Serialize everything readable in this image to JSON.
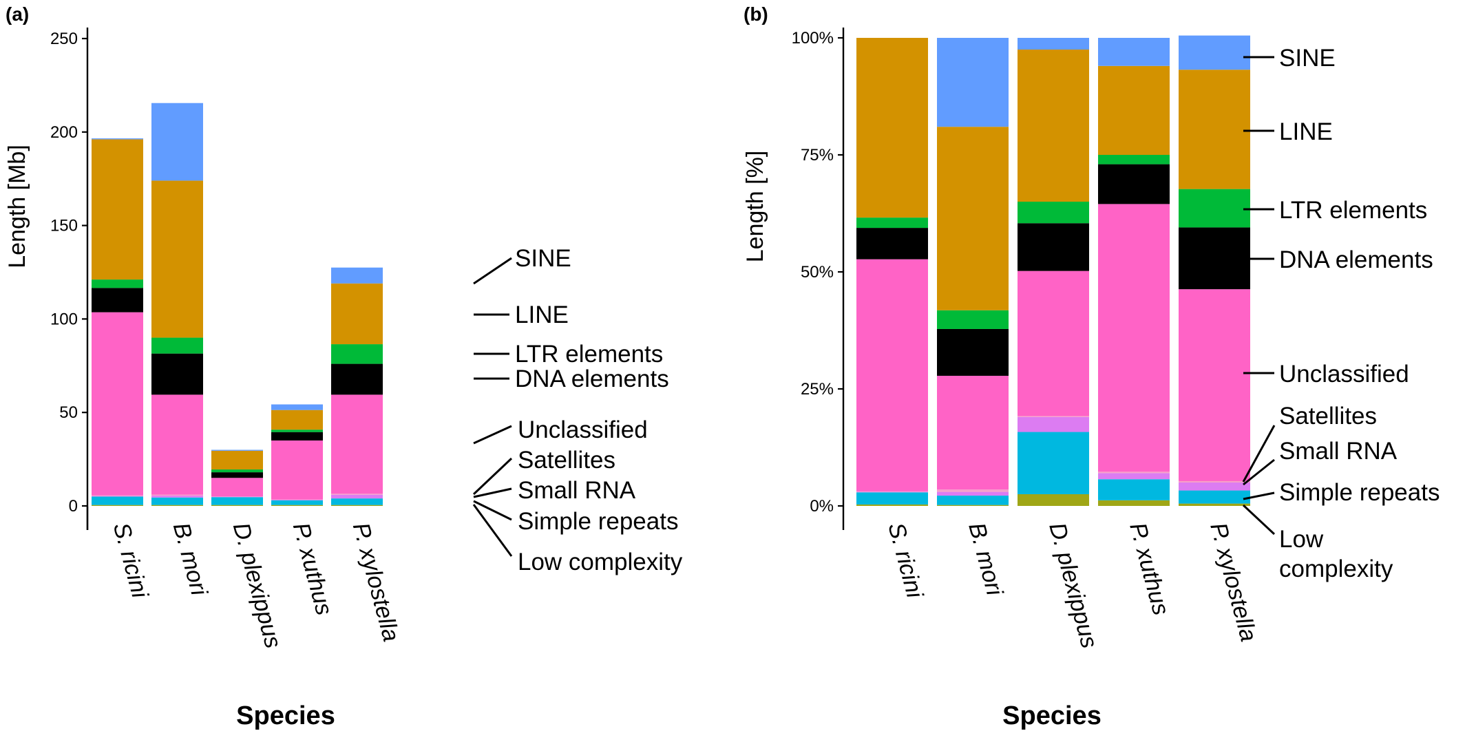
{
  "chart_data": [
    {
      "panel_label": "(a)",
      "type": "bar",
      "stacked": true,
      "categories": [
        "S. ricini",
        "B. mori",
        "D. plexippus",
        "P. xuthus",
        "P. xylostella"
      ],
      "xlabel": "Species",
      "ylabel": "Length [Mb]",
      "ylim": [
        0,
        260
      ],
      "yticks": [
        0,
        50,
        100,
        150,
        200,
        250
      ],
      "ytick_labels": [
        "0",
        "50",
        "100",
        "150",
        "200",
        "250"
      ],
      "grid": false,
      "legend": "direct labels, right of bars",
      "series": [
        {
          "name": "Low complexity",
          "color": "#9FA616",
          "values": [
            0.5,
            0.5,
            0.5,
            0.5,
            0.5
          ]
        },
        {
          "name": "Simple repeats",
          "color": "#00B8E0",
          "values": [
            4.5,
            4.0,
            4.2,
            2.5,
            3.5
          ]
        },
        {
          "name": "Small RNA",
          "color": "#DC7CF2",
          "values": [
            0.3,
            1.0,
            0.2,
            0.3,
            2.0
          ]
        },
        {
          "name": "Satellites",
          "color": "#F5A0C8",
          "values": [
            0.3,
            0.5,
            0.1,
            0.2,
            0.5
          ]
        },
        {
          "name": "Unclassified",
          "color": "#FF63C6",
          "values": [
            98,
            53.5,
            10,
            31.5,
            53
          ]
        },
        {
          "name": "DNA elements",
          "color": "#000000",
          "values": [
            13,
            22,
            3.0,
            4.5,
            16.5
          ]
        },
        {
          "name": "LTR elements",
          "color": "#00BA38",
          "values": [
            4.5,
            8.5,
            1.5,
            1.3,
            10.5
          ]
        },
        {
          "name": "LINE",
          "color": "#D39200",
          "values": [
            75,
            84,
            10,
            10.5,
            32.5
          ]
        },
        {
          "name": "SINE",
          "color": "#619CFF",
          "values": [
            0.5,
            41.5,
            0.5,
            3.0,
            8.5
          ]
        }
      ]
    },
    {
      "panel_label": "(b)",
      "type": "bar",
      "stacked": true,
      "categories": [
        "S. ricini",
        "B. mori",
        "D. plexippus",
        "P. xuthus",
        "P. xylostella"
      ],
      "xlabel": "Species",
      "ylabel": "Length [%]",
      "ylim": [
        0,
        100
      ],
      "yticks": [
        0,
        25,
        50,
        75,
        100
      ],
      "ytick_labels": [
        "0%",
        "25%",
        "50%",
        "75%",
        "100%"
      ],
      "grid": false,
      "legend": "direct labels, right of bars",
      "series": [
        {
          "name": "Low complexity",
          "color": "#9FA616",
          "values": [
            0.3,
            0.2,
            2.5,
            1.2,
            0.5
          ]
        },
        {
          "name": "Simple repeats",
          "color": "#00B8E0",
          "values": [
            2.6,
            2.0,
            13.3,
            4.5,
            2.8
          ]
        },
        {
          "name": "Small RNA",
          "color": "#DC7CF2",
          "values": [
            0.1,
            0.8,
            3.2,
            1.3,
            1.7
          ]
        },
        {
          "name": "Satellites",
          "color": "#F5A0C8",
          "values": [
            0.1,
            0.5,
            0.2,
            0.3,
            0.3
          ]
        },
        {
          "name": "Unclassified",
          "color": "#FF63C6",
          "values": [
            49.6,
            24.3,
            31.0,
            57.2,
            41.0
          ]
        },
        {
          "name": "DNA elements",
          "color": "#000000",
          "values": [
            6.7,
            10.0,
            10.2,
            8.5,
            13.2
          ]
        },
        {
          "name": "LTR elements",
          "color": "#00BA38",
          "values": [
            2.2,
            4.0,
            4.6,
            2.0,
            8.2
          ]
        },
        {
          "name": "LINE",
          "color": "#D39200",
          "values": [
            38.4,
            39.2,
            32.5,
            19.0,
            25.5
          ]
        },
        {
          "name": "SINE",
          "color": "#619CFF",
          "values": [
            0.0,
            19.0,
            2.5,
            6.0,
            7.3
          ]
        }
      ]
    }
  ],
  "legend_labels_a": {
    "sine": "SINE",
    "line": "LINE",
    "ltr": "LTR elements",
    "dna": "DNA elements",
    "unclassified": "Unclassified",
    "satellites": "Satellites",
    "small_rna": "Small RNA",
    "simple_repeats": "Simple repeats",
    "low_complexity": "Low complexity"
  },
  "legend_labels_b": {
    "sine": "SINE",
    "line": "LINE",
    "ltr": "LTR elements",
    "dna": "DNA elements",
    "unclassified": "Unclassified",
    "satellites": "Satellites",
    "small_rna": "Small RNA",
    "simple_repeats": "Simple repeats",
    "low_complexity_1": "Low",
    "low_complexity_2": "complexity"
  }
}
